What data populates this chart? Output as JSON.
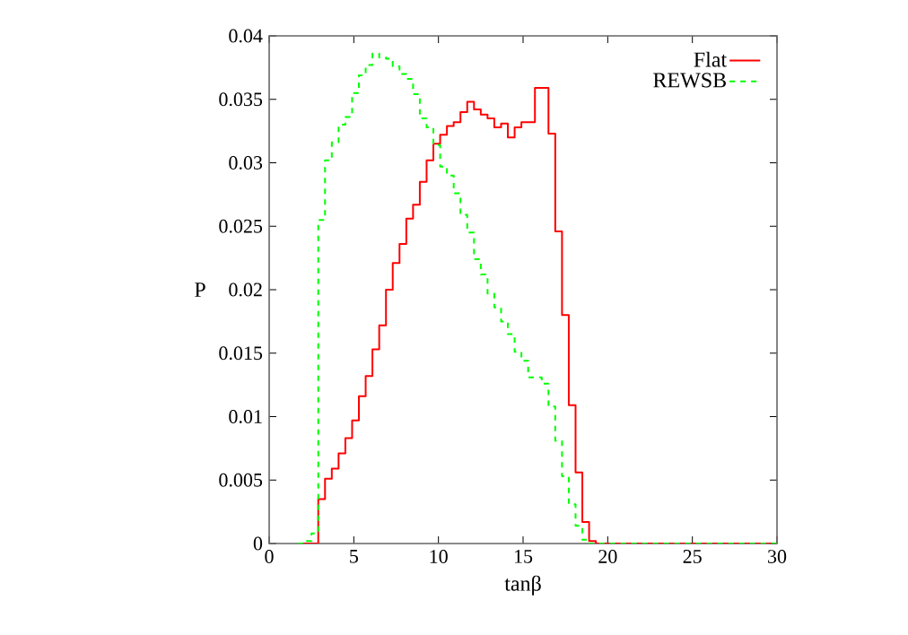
{
  "chart_data": {
    "type": "step",
    "xlabel": "tanβ",
    "ylabel": "P",
    "xlim": [
      0,
      30
    ],
    "ylim": [
      0,
      0.04
    ],
    "xticks": [
      0,
      5,
      10,
      15,
      20,
      25,
      30
    ],
    "yticks": [
      0,
      0.005,
      0.01,
      0.015,
      0.02,
      0.025,
      0.03,
      0.035,
      0.04
    ],
    "legend": "top right",
    "marker": "none",
    "grid": false,
    "x": [
      1.7,
      2.1,
      2.5,
      2.9,
      3.3,
      3.7,
      4.1,
      4.5,
      4.9,
      5.3,
      5.7,
      6.1,
      6.5,
      6.9,
      7.3,
      7.7,
      8.1,
      8.5,
      8.9,
      9.3,
      9.7,
      10.1,
      10.5,
      10.9,
      11.3,
      11.7,
      12.1,
      12.5,
      12.9,
      13.3,
      13.7,
      14.1,
      14.5,
      14.9,
      15.3,
      15.7,
      16.1,
      16.5,
      16.9,
      17.3,
      17.7,
      18.1,
      18.5,
      18.9,
      19.3,
      19.7,
      20.1,
      30
    ],
    "series": [
      {
        "name": "Flat",
        "color": "#ff0000",
        "line_style": "solid",
        "values": [
          0,
          0,
          0,
          0.0035,
          0.0051,
          0.0059,
          0.0071,
          0.0083,
          0.0097,
          0.0116,
          0.0132,
          0.0153,
          0.0172,
          0.02,
          0.0221,
          0.0236,
          0.0256,
          0.0267,
          0.0285,
          0.0302,
          0.0315,
          0.0322,
          0.0329,
          0.0332,
          0.034,
          0.0348,
          0.0342,
          0.0338,
          0.0335,
          0.0328,
          0.0331,
          0.032,
          0.0328,
          0.0332,
          0.0332,
          0.0359,
          0.0359,
          0.0323,
          0.0246,
          0.018,
          0.0109,
          0.0056,
          0.0017,
          0.0002,
          0,
          0,
          0,
          0
        ]
      },
      {
        "name": "REWSB",
        "color": "#00ff00",
        "line_style": "dashed",
        "values": [
          0,
          0.0002,
          0.0008,
          0.0255,
          0.0302,
          0.0316,
          0.033,
          0.0336,
          0.0355,
          0.0369,
          0.0377,
          0.0386,
          0.0383,
          0.0382,
          0.0376,
          0.037,
          0.0366,
          0.0354,
          0.0335,
          0.0328,
          0.0314,
          0.0297,
          0.029,
          0.0276,
          0.0259,
          0.0245,
          0.0224,
          0.0212,
          0.0197,
          0.0186,
          0.0175,
          0.0165,
          0.0151,
          0.0144,
          0.0131,
          0.0131,
          0.0126,
          0.0108,
          0.0081,
          0.0053,
          0.0031,
          0.0014,
          0.0003,
          0,
          0,
          0,
          0,
          0
        ]
      }
    ]
  }
}
